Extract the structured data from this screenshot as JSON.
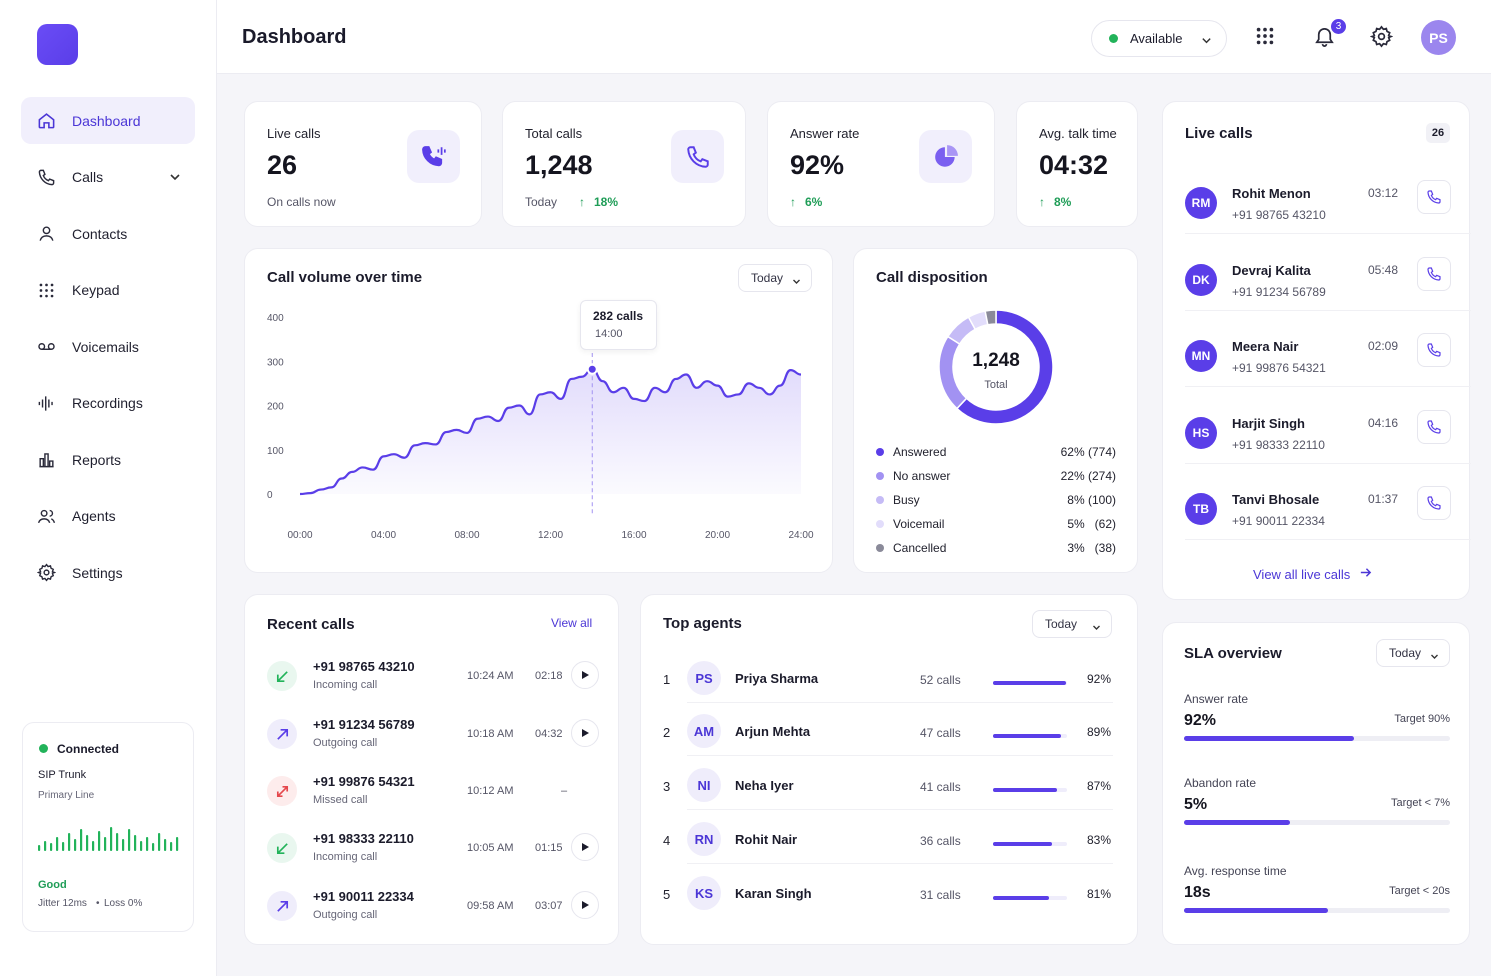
{
  "header": {
    "title": "Dashboard",
    "status": "Available",
    "notifications": "3",
    "avatar": "PS"
  },
  "sidebar": {
    "items": [
      {
        "label": "Dashboard"
      },
      {
        "label": "Calls"
      },
      {
        "label": "Contacts"
      },
      {
        "label": "Keypad"
      },
      {
        "label": "Voicemails"
      },
      {
        "label": "Recordings"
      },
      {
        "label": "Reports"
      },
      {
        "label": "Agents"
      },
      {
        "label": "Settings"
      }
    ],
    "connection": {
      "status": "Connected",
      "trunk": "SIP Trunk",
      "line": "Primary Line",
      "quality": "Good",
      "jitter": "Jitter 12ms",
      "loss": "Loss 0%"
    }
  },
  "kpis": [
    {
      "label": "Live calls",
      "value": "26",
      "sub": "On calls now",
      "trend": ""
    },
    {
      "label": "Total calls",
      "value": "1,248",
      "sub": "Today",
      "trend": "18%"
    },
    {
      "label": "Answer rate",
      "value": "92%",
      "sub": "",
      "trend": "6%"
    },
    {
      "label": "Avg. talk time",
      "value": "04:32",
      "sub": "",
      "trend": "8%"
    }
  ],
  "volume": {
    "title": "Call volume over time",
    "range": "Today",
    "tooltip_calls": "282 calls",
    "tooltip_time": "14:00"
  },
  "chart_data": {
    "type": "area",
    "title": "Call volume over time",
    "x": [
      0,
      0.5,
      1,
      1.5,
      2,
      2.5,
      3,
      3.5,
      4,
      4.5,
      5,
      5.5,
      6,
      6.5,
      7,
      7.5,
      8,
      8.5,
      9,
      9.5,
      10,
      10.5,
      11,
      11.5,
      12,
      12.5,
      13,
      13.5,
      14,
      14.5,
      15,
      15.5,
      16,
      16.5,
      17,
      17.5,
      18,
      18.5,
      19,
      19.5,
      20,
      20.5,
      21,
      21.5,
      22,
      22.5,
      23,
      23.5,
      24
    ],
    "values": [
      0,
      2,
      10,
      15,
      35,
      50,
      60,
      55,
      85,
      90,
      82,
      110,
      115,
      112,
      140,
      145,
      138,
      170,
      175,
      165,
      195,
      200,
      180,
      225,
      230,
      215,
      260,
      265,
      282,
      255,
      230,
      240,
      215,
      210,
      240,
      230,
      260,
      270,
      240,
      255,
      245,
      220,
      225,
      250,
      240,
      225,
      245,
      280,
      270
    ],
    "xticks": [
      "00:00",
      "04:00",
      "08:00",
      "12:00",
      "16:00",
      "20:00",
      "24:00"
    ],
    "yticks": [
      "0",
      "100",
      "200",
      "300",
      "400"
    ],
    "ylim": [
      0,
      400
    ],
    "highlight": {
      "x": 14,
      "y": 282
    }
  },
  "disposition": {
    "title": "Call disposition",
    "total": "1,248",
    "total_label": "Total",
    "items": [
      {
        "name": "Answered",
        "pct": "62% (774)",
        "value": 774,
        "color": "#5a3ee8"
      },
      {
        "name": "No answer",
        "pct": "22% (274)",
        "value": 274,
        "color": "#a292f2"
      },
      {
        "name": "Busy",
        "pct": "8% (100)",
        "value": 100,
        "color": "#c5bbf6"
      },
      {
        "name": "Voicemail",
        "pct": "5%   (62)",
        "value": 62,
        "color": "#e2ddfb"
      },
      {
        "name": "Cancelled",
        "pct": "3%   (38)",
        "value": 38,
        "color": "#8a8a99"
      }
    ]
  },
  "live": {
    "title": "Live calls",
    "count": "26",
    "view_all": "View all live calls",
    "calls": [
      {
        "initials": "RM",
        "name": "Rohit Menon",
        "number": "+91 98765 43210",
        "time": "03:12"
      },
      {
        "initials": "DK",
        "name": "Devraj Kalita",
        "number": "+91 91234 56789",
        "time": "05:48"
      },
      {
        "initials": "MN",
        "name": "Meera Nair",
        "number": "+91 99876 54321",
        "time": "02:09"
      },
      {
        "initials": "HS",
        "name": "Harjit Singh",
        "number": "+91 98333 22110",
        "time": "04:16"
      },
      {
        "initials": "TB",
        "name": "Tanvi Bhosale",
        "number": "+91 90011 22334",
        "time": "01:37"
      }
    ]
  },
  "recent": {
    "title": "Recent calls",
    "view_all": "View all",
    "calls": [
      {
        "number": "+91 98765 43210",
        "type": "Incoming call",
        "time": "10:24 AM",
        "duration": "02:18",
        "kind": "in"
      },
      {
        "number": "+91 91234 56789",
        "type": "Outgoing call",
        "time": "10:18 AM",
        "duration": "04:32",
        "kind": "out"
      },
      {
        "number": "+91 99876 54321",
        "type": "Missed call",
        "time": "10:12 AM",
        "duration": "–",
        "kind": "missed"
      },
      {
        "number": "+91 98333 22110",
        "type": "Incoming call",
        "time": "10:05 AM",
        "duration": "01:15",
        "kind": "in"
      },
      {
        "number": "+91 90011 22334",
        "type": "Outgoing call",
        "time": "09:58 AM",
        "duration": "03:07",
        "kind": "out"
      }
    ]
  },
  "agents": {
    "title": "Top agents",
    "range": "Today",
    "list": [
      {
        "rank": "1",
        "initials": "PS",
        "name": "Priya Sharma",
        "calls": "52 calls",
        "pct": "92%",
        "value": 0.98
      },
      {
        "rank": "2",
        "initials": "AM",
        "name": "Arjun Mehta",
        "calls": "47 calls",
        "pct": "89%",
        "value": 0.92
      },
      {
        "rank": "3",
        "initials": "NI",
        "name": "Neha Iyer",
        "calls": "41 calls",
        "pct": "87%",
        "value": 0.86
      },
      {
        "rank": "4",
        "initials": "RN",
        "name": "Rohit Nair",
        "calls": "36 calls",
        "pct": "83%",
        "value": 0.8
      },
      {
        "rank": "5",
        "initials": "KS",
        "name": "Karan Singh",
        "calls": "31 calls",
        "pct": "81%",
        "value": 0.76
      }
    ]
  },
  "sla": {
    "title": "SLA overview",
    "range": "Today",
    "items": [
      {
        "label": "Answer rate",
        "value": "92%",
        "target": "Target 90%",
        "fill": 0.64
      },
      {
        "label": "Abandon rate",
        "value": "5%",
        "target": "Target < 7%",
        "fill": 0.4
      },
      {
        "label": "Avg. response time",
        "value": "18s",
        "target": "Target < 20s",
        "fill": 0.54
      }
    ]
  },
  "colors": {
    "accent": "#5a3ee8",
    "success": "#22b35a",
    "missed": "#e5484d"
  }
}
